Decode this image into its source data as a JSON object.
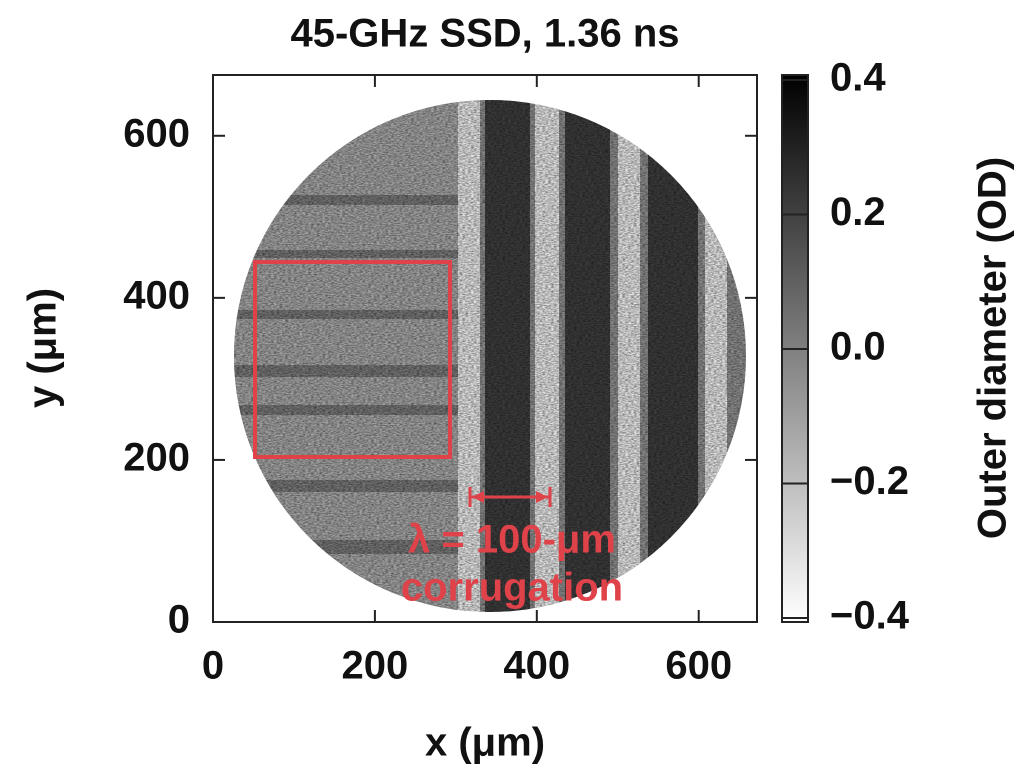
{
  "chart_data": {
    "type": "image",
    "title": "45-GHz SSD, 1.36 ns",
    "xlabel": "x (μm)",
    "ylabel": "y (μm)",
    "xlim": [
      0,
      672
    ],
    "ylim": [
      0,
      675
    ],
    "xticks": [
      0,
      200,
      400,
      600
    ],
    "yticks": [
      0,
      200,
      400,
      600
    ],
    "colormap": "gray_r",
    "colorbar": {
      "label": "Outer diameter (OD)",
      "lim": [
        -0.4,
        0.4
      ],
      "ticks": [
        0.4,
        0.2,
        {
          "value": 0,
          "label": "0.0"
        },
        {
          "value": -0.2,
          "label": "−0.2"
        },
        {
          "value": -0.4,
          "label": "−0.4"
        }
      ]
    },
    "annotations": [
      "λ = 100-μm",
      "corrugation"
    ]
  }
}
